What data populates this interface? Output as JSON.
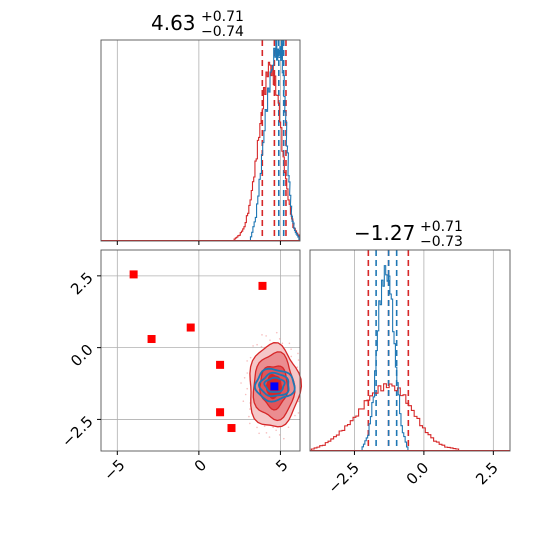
{
  "chart_data": [
    {
      "type": "histogram",
      "panel": "marginal-param-1",
      "title": {
        "value": "4.63",
        "upper": "+0.71",
        "lower": "−0.74"
      },
      "xlim": [
        -6,
        6.2
      ],
      "grid": true,
      "quantile_lines": [
        {
          "series": "red",
          "x": [
            3.89,
            4.63,
            5.34
          ]
        },
        {
          "series": "blue",
          "x": [
            4.9,
            5.2
          ]
        }
      ],
      "series": [
        {
          "name": "",
          "color": "#d62728",
          "x": [
            2.2,
            2.5,
            2.8,
            3.1,
            3.4,
            3.7,
            4.0,
            4.3,
            4.6,
            4.9,
            5.2,
            5.5,
            5.8,
            6.1
          ],
          "values": [
            0.01,
            0.03,
            0.07,
            0.17,
            0.33,
            0.53,
            0.73,
            0.88,
            0.82,
            0.68,
            0.4,
            0.21,
            0.07,
            0.03
          ]
        },
        {
          "name": "",
          "color": "#1f77b4",
          "x": [
            3.2,
            3.5,
            3.8,
            4.1,
            4.4,
            4.7,
            4.9,
            5.1,
            5.3,
            5.5,
            5.7,
            5.9,
            6.1
          ],
          "values": [
            0.02,
            0.12,
            0.35,
            0.63,
            0.82,
            0.96,
            0.92,
            0.95,
            0.65,
            0.34,
            0.12,
            0.05,
            0.02
          ]
        }
      ]
    },
    {
      "type": "histogram",
      "panel": "marginal-param-2",
      "title": {
        "value": "−1.27",
        "upper": "+0.71",
        "lower": "−0.73"
      },
      "xlim": [
        -4.1,
        3.1
      ],
      "grid": true,
      "x_ticks": [
        "−2.5",
        "0.0",
        "2.5"
      ],
      "quantile_lines": [
        {
          "series": "red",
          "x": [
            -2.0,
            -1.27,
            -0.56
          ]
        },
        {
          "series": "blue",
          "x": [
            -1.72,
            -1.27,
            -0.98
          ]
        }
      ],
      "series": [
        {
          "name": "",
          "color": "#d62728",
          "x": [
            -4.0,
            -3.6,
            -3.2,
            -2.8,
            -2.4,
            -2.0,
            -1.6,
            -1.2,
            -0.8,
            -0.4,
            0.0,
            0.4,
            0.8,
            1.2
          ],
          "values": [
            0.01,
            0.03,
            0.07,
            0.12,
            0.18,
            0.26,
            0.31,
            0.33,
            0.29,
            0.2,
            0.11,
            0.05,
            0.02,
            0.01
          ]
        },
        {
          "name": "",
          "color": "#1f77b4",
          "x": [
            -2.2,
            -2.0,
            -1.8,
            -1.6,
            -1.4,
            -1.2,
            -1.0,
            -0.8,
            -0.6
          ],
          "values": [
            0.02,
            0.08,
            0.28,
            0.72,
            0.9,
            0.82,
            0.42,
            0.12,
            0.02
          ]
        }
      ]
    },
    {
      "type": "scatter",
      "panel": "joint-2d",
      "xlim": [
        -6,
        6.2
      ],
      "ylim": [
        -3.6,
        3.4
      ],
      "grid": true,
      "x_ticks": [
        "−5",
        "0",
        "5"
      ],
      "y_ticks": [
        "−2.5",
        "0.0",
        "2.5"
      ],
      "series": [
        {
          "name": "",
          "color": "#ff0000",
          "marker": "square",
          "x": [
            -4.0,
            -2.9,
            -0.5,
            1.3,
            3.9,
            1.3,
            2.0
          ],
          "values": [
            2.55,
            0.3,
            0.7,
            -0.6,
            2.15,
            -2.25,
            -2.8
          ]
        },
        {
          "name": "",
          "color": "#0000ff",
          "marker": "square",
          "x": [
            4.63
          ],
          "values": [
            -1.35
          ]
        }
      ],
      "contours": [
        {
          "color": "#d62728",
          "center": [
            4.6,
            -1.35
          ],
          "levels": [
            [
              1.55,
              1.45
            ],
            [
              1.25,
              1.15
            ],
            [
              0.85,
              0.75
            ],
            [
              0.45,
              0.4
            ]
          ]
        },
        {
          "color": "#1f77b4",
          "center": [
            4.65,
            -1.3
          ],
          "levels": [
            [
              1.2,
              0.55
            ],
            [
              0.9,
              0.4
            ],
            [
              0.6,
              0.25
            ]
          ]
        }
      ]
    }
  ]
}
